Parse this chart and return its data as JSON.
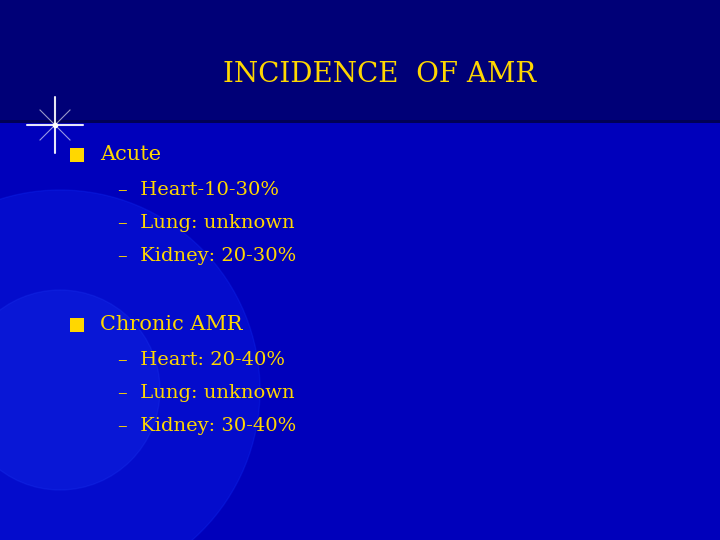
{
  "title": "INCIDENCE  OF AMR",
  "title_color": "#FFD700",
  "title_fontsize": 20,
  "bg_color": "#0000BB",
  "header_bg_color": "#000088",
  "text_color": "#FFD700",
  "bullet_color": "#FFD700",
  "body_fontsize": 15,
  "sub_fontsize": 14,
  "bullet1_header": "Acute",
  "bullet1_items": [
    "–  Heart-10-30%",
    "–  Lung: unknown",
    "–  Kidney: 20-30%"
  ],
  "bullet2_header": "Chronic AMR",
  "bullet2_items": [
    "–  Heart: 20-40%",
    "–  Lung: unknown",
    "–  Kidney: 30-40%"
  ],
  "figsize": [
    7.2,
    5.4
  ],
  "dpi": 100
}
